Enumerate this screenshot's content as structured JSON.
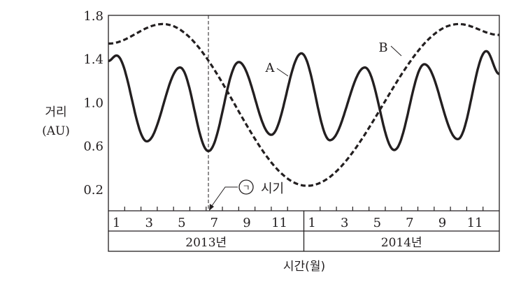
{
  "chart_data": {
    "type": "line",
    "title": "",
    "ylabel_line1": "거리",
    "ylabel_line2": "(AU)",
    "xlabel": "시간(월)",
    "ylim": [
      0,
      1.8
    ],
    "xlim_months": [
      0,
      24
    ],
    "yticks": [
      "1.8",
      "1.4",
      "1.0",
      "0.6",
      "0.2"
    ],
    "ytick_values": [
      1.8,
      1.4,
      1.0,
      0.6,
      0.2
    ],
    "month_labels": [
      "1",
      "3",
      "5",
      "7",
      "9",
      "11",
      "1",
      "3",
      "5",
      "7",
      "9",
      "11"
    ],
    "month_label_positions": [
      1,
      3,
      5,
      7,
      9,
      11,
      13,
      15,
      17,
      19,
      21,
      23
    ],
    "years": [
      "2013년",
      "2014년"
    ],
    "series": [
      {
        "name": "A",
        "style": "solid",
        "t": [
          0,
          0.5,
          2.36,
          4.4,
          6.14,
          8.0,
          10.0,
          11.85,
          13.6,
          15.75,
          17.55,
          19.4,
          21.45,
          23.2,
          24
        ],
        "values": [
          1.38,
          1.43,
          0.64,
          1.32,
          0.55,
          1.37,
          0.7,
          1.45,
          0.65,
          1.32,
          0.56,
          1.35,
          0.66,
          1.47,
          1.26
        ]
      },
      {
        "name": "B",
        "style": "dashed",
        "t": [
          0,
          3.35,
          12.2,
          21.5,
          24
        ],
        "values": [
          1.54,
          1.72,
          0.23,
          1.72,
          1.62
        ]
      }
    ],
    "annotation": {
      "label_symbol": "ㄱ",
      "label_text": "시기",
      "t": 6.14
    }
  }
}
